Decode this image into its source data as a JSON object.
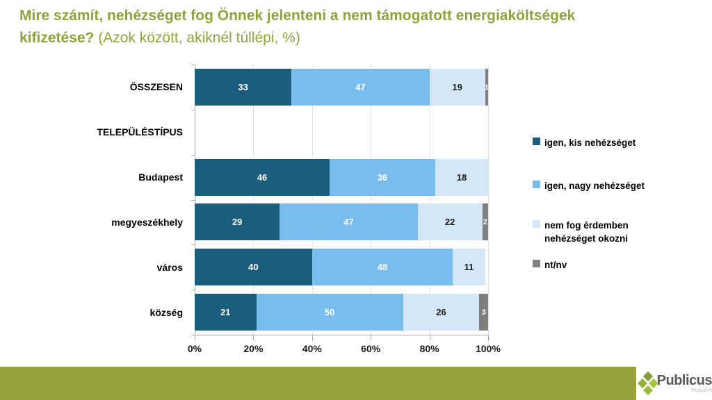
{
  "title": {
    "line1": "Mire számít, nehézséget fog Önnek jelenteni a nem támogatott energiaköltségek",
    "line2_bold": "kifizetése?",
    "line2_normal": " (Azok között, akiknél túllépi, %)"
  },
  "chart_data": {
    "type": "bar",
    "orientation": "horizontal",
    "stacked": true,
    "categories": [
      "ÖSSZESEN",
      "TELEPÜLÉSTÍPUS",
      "Budapest",
      "megyeszékhely",
      "város",
      "község"
    ],
    "series": [
      {
        "name": "igen, kis nehézséget",
        "color": "#1c5d7e",
        "label_color": "#ffffff",
        "values": [
          33,
          null,
          46,
          29,
          40,
          21
        ]
      },
      {
        "name": "igen, nagy nehézséget",
        "color": "#79bdec",
        "label_color": "#ffffff",
        "values": [
          47,
          null,
          36,
          47,
          48,
          50
        ]
      },
      {
        "name": "nem fog érdemben nehézséget okozni",
        "color": "#d4e7f8",
        "label_color": "#1a1a1a",
        "values": [
          19,
          null,
          18,
          22,
          11,
          26
        ]
      },
      {
        "name": "nt/nv",
        "color": "#7f7f7f",
        "label_color": "#ffffff",
        "values": [
          1,
          null,
          0,
          2,
          0,
          3
        ]
      }
    ],
    "xlim": [
      0,
      100
    ],
    "x_ticks": [
      "0%",
      "20%",
      "40%",
      "60%",
      "80%",
      "100%"
    ],
    "grid": "dotted-vertical",
    "legend_position": "right"
  },
  "footer": {
    "brand": "Publicus",
    "brand_sub": "Research"
  },
  "colors": {
    "title": "#92a13c",
    "footer_bar": "#97a23b",
    "axis": "#a6a6a6",
    "logo_diamond_top": "#7f9c35",
    "logo_diamond_left": "#93b13c",
    "logo_diamond_right": "#a9c640",
    "logo_diamond_bottom": "#9cba3e"
  }
}
